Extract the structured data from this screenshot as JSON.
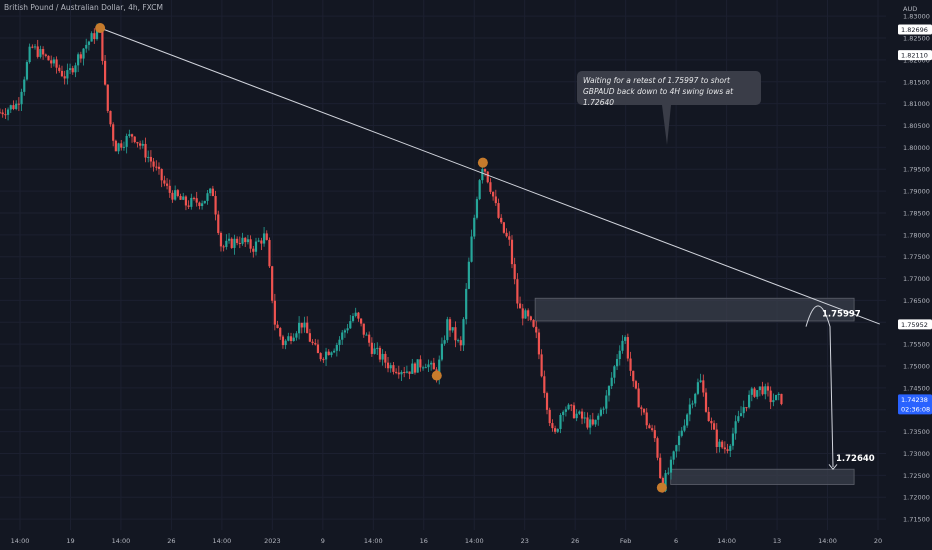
{
  "header": {
    "symbol_title": "British Pound / Australian Dollar, 4h, FXCM"
  },
  "annotation": {
    "text_line1": "Waiting for a retest of 1.75997 to short",
    "text_line2": "GBPAUD back down to 4H swing lows at 1.72640"
  },
  "colors": {
    "background": "#131722",
    "bull": "#26a69a",
    "bear": "#ef5350",
    "trendline": "#d1d4dc",
    "swing_marker": "#c67b2c",
    "zone": "#3a3f4b",
    "axis_text": "#b2b5be",
    "grid": "#1c2030"
  },
  "chart_data": {
    "type": "candlestick",
    "title": "British Pound / Australian Dollar, 4h, FXCM",
    "y_axis": {
      "label": "AUD",
      "ylim": [
        1.7125,
        1.8337
      ],
      "ticks": [
        "1.83000",
        "1.82500",
        "1.82000",
        "1.81500",
        "1.81000",
        "1.80500",
        "1.80000",
        "1.79500",
        "1.79000",
        "1.78500",
        "1.78000",
        "1.77500",
        "1.77000",
        "1.76500",
        "1.76000",
        "1.75500",
        "1.75000",
        "1.74500",
        "1.74000",
        "1.73500",
        "1.73000",
        "1.72500",
        "1.72000",
        "1.71500"
      ]
    },
    "x_axis": {
      "ticks": [
        "14:00",
        "19",
        "14:00",
        "26",
        "14:00",
        "2023",
        "9",
        "14:00",
        "16",
        "14:00",
        "23",
        "26",
        "Feb",
        "6",
        "14:00",
        "13",
        "14:00",
        "20"
      ]
    },
    "price_labels": [
      {
        "value": "1.82696",
        "style": "white"
      },
      {
        "value": "1.82110",
        "style": "white"
      },
      {
        "value": "1.75952",
        "style": "white"
      },
      {
        "value": "1.74238",
        "style": "blue",
        "countdown": "02:36:08"
      }
    ],
    "zones": [
      {
        "name": "resistance-zone",
        "top": 1.7655,
        "bottom": 1.7603,
        "from": 0.604,
        "to": 0.964
      },
      {
        "name": "support-zone",
        "top": 1.7264,
        "bottom": 1.7229,
        "from": 0.757,
        "to": 0.964
      }
    ],
    "trendline": {
      "from": [
        0.113,
        1.8273
      ],
      "to": [
        0.993,
        1.7596
      ]
    },
    "swing_points": [
      [
        0.113,
        1.8273
      ],
      [
        0.545,
        1.7965
      ],
      [
        0.493,
        1.7478
      ],
      [
        0.747,
        1.7222
      ]
    ],
    "targets": [
      {
        "label": "1.75997",
        "value": 1.75997
      },
      {
        "label": "1.72640",
        "value": 1.7264
      }
    ],
    "path_points": [
      [
        0.0,
        1.808
      ],
      [
        0.02,
        1.81
      ],
      [
        0.035,
        1.823
      ],
      [
        0.055,
        1.82
      ],
      [
        0.075,
        1.816
      ],
      [
        0.095,
        1.823
      ],
      [
        0.113,
        1.8273
      ],
      [
        0.12,
        1.81
      ],
      [
        0.13,
        1.8
      ],
      [
        0.15,
        1.803
      ],
      [
        0.17,
        1.797
      ],
      [
        0.19,
        1.79
      ],
      [
        0.21,
        1.787
      ],
      [
        0.23,
        1.788
      ],
      [
        0.24,
        1.79
      ],
      [
        0.25,
        1.777
      ],
      [
        0.27,
        1.779
      ],
      [
        0.285,
        1.777
      ],
      [
        0.3,
        1.78
      ],
      [
        0.31,
        1.76
      ],
      [
        0.32,
        1.755
      ],
      [
        0.34,
        1.76
      ],
      [
        0.36,
        1.752
      ],
      [
        0.38,
        1.755
      ],
      [
        0.4,
        1.762
      ],
      [
        0.42,
        1.754
      ],
      [
        0.44,
        1.75
      ],
      [
        0.46,
        1.749
      ],
      [
        0.48,
        1.751
      ],
      [
        0.493,
        1.748
      ],
      [
        0.505,
        1.76
      ],
      [
        0.52,
        1.754
      ],
      [
        0.53,
        1.775
      ],
      [
        0.54,
        1.792
      ],
      [
        0.545,
        1.7965
      ],
      [
        0.555,
        1.79
      ],
      [
        0.565,
        1.782
      ],
      [
        0.575,
        1.778
      ],
      [
        0.585,
        1.763
      ],
      [
        0.595,
        1.761
      ],
      [
        0.605,
        1.757
      ],
      [
        0.615,
        1.744
      ],
      [
        0.625,
        1.733
      ],
      [
        0.635,
        1.741
      ],
      [
        0.65,
        1.739
      ],
      [
        0.67,
        1.736
      ],
      [
        0.685,
        1.743
      ],
      [
        0.7,
        1.755
      ],
      [
        0.705,
        1.757
      ],
      [
        0.715,
        1.745
      ],
      [
        0.73,
        1.737
      ],
      [
        0.74,
        1.733
      ],
      [
        0.747,
        1.7222
      ],
      [
        0.757,
        1.727
      ],
      [
        0.77,
        1.736
      ],
      [
        0.78,
        1.742
      ],
      [
        0.79,
        1.747
      ],
      [
        0.8,
        1.738
      ],
      [
        0.81,
        1.732
      ],
      [
        0.82,
        1.731
      ],
      [
        0.83,
        1.736
      ],
      [
        0.84,
        1.741
      ],
      [
        0.85,
        1.744
      ],
      [
        0.86,
        1.745
      ],
      [
        0.87,
        1.7424
      ],
      [
        0.882,
        1.7424
      ]
    ],
    "grid": true
  }
}
